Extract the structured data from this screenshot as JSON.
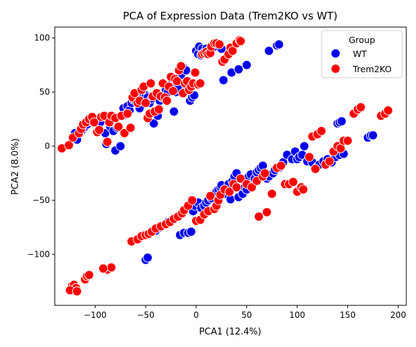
{
  "chart_data": {
    "type": "scatter",
    "title": "PCA of Expression Data (Trem2KO vs WT)",
    "xlabel": "PCA1 (12.4%)",
    "ylabel": "PCA2 (8.0%)",
    "xlim": [
      -140,
      208
    ],
    "ylim": [
      -147,
      110
    ],
    "xticks": [
      -100,
      -50,
      0,
      50,
      100,
      150,
      200
    ],
    "xtick_labels": [
      "−100",
      "−50",
      "0",
      "50",
      "100",
      "150",
      "200"
    ],
    "yticks": [
      -100,
      -50,
      0,
      50,
      100
    ],
    "ytick_labels": [
      "−100",
      "−50",
      "0",
      "50",
      "100"
    ],
    "grid": false,
    "legend": {
      "title": "Group",
      "position": "top-right"
    },
    "series": [
      {
        "name": "WT",
        "color": "#0000ee",
        "points": [
          [
            -120,
            12
          ],
          [
            -119,
            8
          ],
          [
            -118,
            6
          ],
          [
            -113,
            15
          ],
          [
            -110,
            18
          ],
          [
            -108,
            20
          ],
          [
            -104,
            23
          ],
          [
            -100,
            25
          ],
          [
            -95,
            22
          ],
          [
            -90,
            12
          ],
          [
            -89,
            2
          ],
          [
            -85,
            18
          ],
          [
            -82,
            14
          ],
          [
            -80,
            -4
          ],
          [
            -78,
            17
          ],
          [
            -75,
            0
          ],
          [
            -72,
            35
          ],
          [
            -70,
            29
          ],
          [
            -68,
            37
          ],
          [
            -66,
            33
          ],
          [
            -64,
            40
          ],
          [
            -62,
            43
          ],
          [
            -60,
            42
          ],
          [
            -58,
            45
          ],
          [
            -56,
            35
          ],
          [
            -54,
            43
          ],
          [
            -52,
            48
          ],
          [
            -50,
            47
          ],
          [
            -48,
            45
          ],
          [
            -46,
            40
          ],
          [
            -44,
            44
          ],
          [
            -42,
            21
          ],
          [
            -40,
            30
          ],
          [
            -38,
            28
          ],
          [
            -36,
            42
          ],
          [
            -34,
            45
          ],
          [
            -32,
            47
          ],
          [
            -30,
            52
          ],
          [
            -28,
            50
          ],
          [
            -26,
            55
          ],
          [
            -24,
            58
          ],
          [
            -22,
            32
          ],
          [
            -20,
            50
          ],
          [
            -18,
            53
          ],
          [
            -15,
            66
          ],
          [
            -12,
            72
          ],
          [
            -10,
            70
          ],
          [
            -8,
            60
          ],
          [
            -6,
            42
          ],
          [
            -4,
            45
          ],
          [
            -2,
            47
          ],
          [
            0,
            88
          ],
          [
            2,
            85
          ],
          [
            3,
            92
          ],
          [
            5,
            84
          ],
          [
            6,
            90
          ],
          [
            8,
            85
          ],
          [
            10,
            90
          ],
          [
            12,
            88
          ],
          [
            15,
            90
          ],
          [
            18,
            92
          ],
          [
            25,
            90
          ],
          [
            27,
            61
          ],
          [
            35,
            68
          ],
          [
            42,
            71
          ],
          [
            50,
            75
          ],
          [
            72,
            88
          ],
          [
            80,
            93
          ],
          [
            82,
            94
          ],
          [
            -50,
            -105
          ],
          [
            -48,
            -103
          ],
          [
            -40,
            -78
          ],
          [
            -36,
            -75
          ],
          [
            -30,
            -72
          ],
          [
            -28,
            -70
          ],
          [
            -24,
            -68
          ],
          [
            -20,
            -66
          ],
          [
            -16,
            -82
          ],
          [
            -12,
            -80
          ],
          [
            -8,
            -80
          ],
          [
            -5,
            -79
          ],
          [
            -3,
            -60
          ],
          [
            -1,
            -55
          ],
          [
            2,
            -52
          ],
          [
            5,
            -57
          ],
          [
            8,
            -55
          ],
          [
            10,
            -52
          ],
          [
            12,
            -50
          ],
          [
            15,
            -48
          ],
          [
            18,
            -45
          ],
          [
            20,
            -42
          ],
          [
            22,
            -40
          ],
          [
            24,
            -38
          ],
          [
            25,
            -36
          ],
          [
            28,
            -44
          ],
          [
            30,
            -40
          ],
          [
            32,
            -35
          ],
          [
            34,
            -49
          ],
          [
            36,
            -32
          ],
          [
            38,
            -28
          ],
          [
            40,
            -25
          ],
          [
            42,
            -47
          ],
          [
            44,
            -30
          ],
          [
            46,
            -44
          ],
          [
            48,
            -38
          ],
          [
            50,
            -40
          ],
          [
            52,
            -28
          ],
          [
            54,
            -26
          ],
          [
            56,
            -35
          ],
          [
            58,
            -30
          ],
          [
            60,
            -24
          ],
          [
            62,
            -22
          ],
          [
            64,
            -20
          ],
          [
            66,
            -18
          ],
          [
            70,
            -30
          ],
          [
            72,
            -28
          ],
          [
            76,
            -25
          ],
          [
            78,
            -22
          ],
          [
            82,
            -20
          ],
          [
            86,
            -15
          ],
          [
            90,
            -8
          ],
          [
            95,
            -12
          ],
          [
            98,
            -5
          ],
          [
            100,
            -12
          ],
          [
            102,
            -10
          ],
          [
            105,
            -8
          ],
          [
            107,
            0
          ],
          [
            110,
            -14
          ],
          [
            115,
            -15
          ],
          [
            120,
            -19
          ],
          [
            122,
            -17
          ],
          [
            126,
            -14
          ],
          [
            130,
            -12
          ],
          [
            134,
            -15
          ],
          [
            138,
            -10
          ],
          [
            142,
            -8
          ],
          [
            146,
            -7
          ],
          [
            140,
            21
          ],
          [
            142,
            22
          ],
          [
            144,
            23
          ],
          [
            170,
            8
          ],
          [
            173,
            10
          ],
          [
            175,
            10
          ]
        ]
      },
      {
        "name": "Trem2KO",
        "color": "#ff0000",
        "points": [
          [
            -133,
            -2
          ],
          [
            -126,
            1
          ],
          [
            -122,
            8
          ],
          [
            -116,
            12
          ],
          [
            -114,
            16
          ],
          [
            -112,
            20
          ],
          [
            -109,
            22
          ],
          [
            -106,
            25
          ],
          [
            -103,
            27
          ],
          [
            -101,
            22
          ],
          [
            -98,
            13
          ],
          [
            -96,
            15
          ],
          [
            -94,
            27
          ],
          [
            -91,
            28
          ],
          [
            -88,
            4
          ],
          [
            -86,
            22
          ],
          [
            -84,
            28
          ],
          [
            -80,
            26
          ],
          [
            -77,
            18
          ],
          [
            -74,
            28
          ],
          [
            -71,
            12
          ],
          [
            -68,
            30
          ],
          [
            -65,
            17
          ],
          [
            -63,
            45
          ],
          [
            -61,
            49
          ],
          [
            -58,
            40
          ],
          [
            -56,
            42
          ],
          [
            -54,
            52
          ],
          [
            -52,
            55
          ],
          [
            -50,
            40
          ],
          [
            -48,
            26
          ],
          [
            -46,
            30
          ],
          [
            -45,
            58
          ],
          [
            -43,
            46
          ],
          [
            -41,
            32
          ],
          [
            -39,
            49
          ],
          [
            -37,
            34
          ],
          [
            -35,
            46
          ],
          [
            -33,
            58
          ],
          [
            -31,
            45
          ],
          [
            -29,
            42
          ],
          [
            -27,
            55
          ],
          [
            -25,
            64
          ],
          [
            -23,
            51
          ],
          [
            -21,
            62
          ],
          [
            -19,
            60
          ],
          [
            -17,
            70
          ],
          [
            -15,
            74
          ],
          [
            -13,
            49
          ],
          [
            -11,
            58
          ],
          [
            -9,
            60
          ],
          [
            -7,
            52
          ],
          [
            -5,
            55
          ],
          [
            -3,
            58
          ],
          [
            -1,
            68
          ],
          [
            2,
            57
          ],
          [
            4,
            58
          ],
          [
            6,
            85
          ],
          [
            8,
            86
          ],
          [
            10,
            87
          ],
          [
            12,
            85
          ],
          [
            14,
            86
          ],
          [
            15,
            92
          ],
          [
            18,
            95
          ],
          [
            20,
            95
          ],
          [
            23,
            94
          ],
          [
            26,
            78
          ],
          [
            28,
            80
          ],
          [
            32,
            85
          ],
          [
            34,
            91
          ],
          [
            36,
            88
          ],
          [
            40,
            95
          ],
          [
            43,
            98
          ],
          [
            44,
            97
          ],
          [
            -123,
            -129
          ],
          [
            -121,
            -128
          ],
          [
            -119,
            -131
          ],
          [
            -110,
            -123
          ],
          [
            -108,
            -120
          ],
          [
            -106,
            -119
          ],
          [
            -88,
            -114
          ],
          [
            -84,
            -112
          ],
          [
            -64,
            -88
          ],
          [
            -58,
            -86
          ],
          [
            -54,
            -83
          ],
          [
            -50,
            -82
          ],
          [
            -47,
            -81
          ],
          [
            -44,
            -79
          ],
          [
            -40,
            -76
          ],
          [
            -35,
            -74
          ],
          [
            -30,
            -72
          ],
          [
            -26,
            -70
          ],
          [
            -22,
            -67
          ],
          [
            -18,
            -65
          ],
          [
            -14,
            -62
          ],
          [
            -12,
            -59
          ],
          [
            -8,
            -55
          ],
          [
            -4,
            -50
          ],
          [
            0,
            -69
          ],
          [
            4,
            -68
          ],
          [
            8,
            -63
          ],
          [
            12,
            -60
          ],
          [
            14,
            -46
          ],
          [
            18,
            -58
          ],
          [
            20,
            -55
          ],
          [
            22,
            -50
          ],
          [
            24,
            -45
          ],
          [
            28,
            -40
          ],
          [
            33,
            -42
          ],
          [
            37,
            -35
          ],
          [
            40,
            -38
          ],
          [
            44,
            -30
          ],
          [
            50,
            -35
          ],
          [
            55,
            -38
          ],
          [
            60,
            -32
          ],
          [
            62,
            -65
          ],
          [
            66,
            -28
          ],
          [
            68,
            -25
          ],
          [
            70,
            -61
          ],
          [
            75,
            -44
          ],
          [
            80,
            -20
          ],
          [
            84,
            -18
          ],
          [
            88,
            -35
          ],
          [
            92,
            -35
          ],
          [
            96,
            -33
          ],
          [
            100,
            -42
          ],
          [
            104,
            -38
          ],
          [
            106,
            -40
          ],
          [
            112,
            -10
          ],
          [
            115,
            9
          ],
          [
            118,
            -21
          ],
          [
            120,
            11
          ],
          [
            124,
            14
          ],
          [
            128,
            -17
          ],
          [
            132,
            -14
          ],
          [
            136,
            -5
          ],
          [
            140,
            0
          ],
          [
            143,
            -2
          ],
          [
            146,
            5
          ],
          [
            150,
            5
          ],
          [
            156,
            30
          ],
          [
            160,
            34
          ],
          [
            163,
            36
          ],
          [
            183,
            28
          ],
          [
            187,
            30
          ],
          [
            190,
            33
          ],
          [
            -125,
            -133
          ],
          [
            -118,
            -134
          ],
          [
            -92,
            -113
          ]
        ]
      }
    ]
  }
}
